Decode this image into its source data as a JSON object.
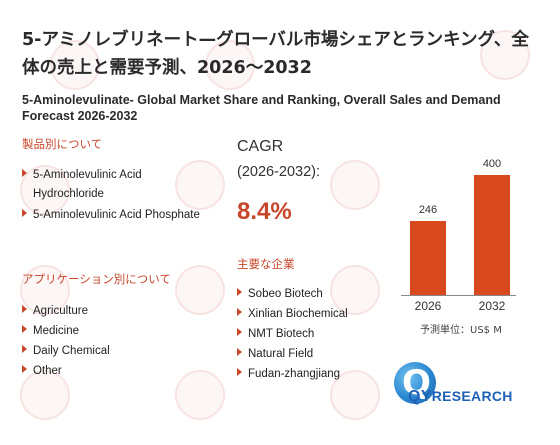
{
  "header": {
    "title_ja": "5-アミノレブリネート—グローバル市場シェアとランキング、全体の売上と需要予測、2026～2032",
    "title_en": "5-Aminolevulinate- Global Market Share and Ranking, Overall Sales and Demand Forecast 2026-2032"
  },
  "products": {
    "heading": "製品別について",
    "items": [
      "5-Aminolevulinic Acid Hydrochloride",
      "5-Aminolevulinic Acid Phosphate"
    ]
  },
  "applications": {
    "heading": "アプリケーション別について",
    "items": [
      "Agriculture",
      "Medicine",
      "Daily Chemical",
      "Other"
    ]
  },
  "cagr": {
    "label": "CAGR",
    "period": "(2026-2032):",
    "value": "8.4%"
  },
  "companies": {
    "heading": "主要な企業",
    "items": [
      "Sobeo Biotech",
      "Xinlian Biochemical",
      "NMT Biotech",
      "Natural Field",
      "Fudan-zhangjiang"
    ]
  },
  "chart_data": {
    "type": "bar",
    "categories": [
      "2026",
      "2032"
    ],
    "values": [
      246,
      400
    ],
    "value_labels": [
      "246",
      "400"
    ],
    "ylim": [
      0,
      400
    ],
    "unit": "予測単位：US$ M",
    "bar_color": "#d9491f"
  },
  "logo": {
    "text_qy": "QY",
    "text_rest": "RESEARCH"
  },
  "colors": {
    "accent": "#c8472b",
    "logo_blue": "#1f62b5"
  }
}
